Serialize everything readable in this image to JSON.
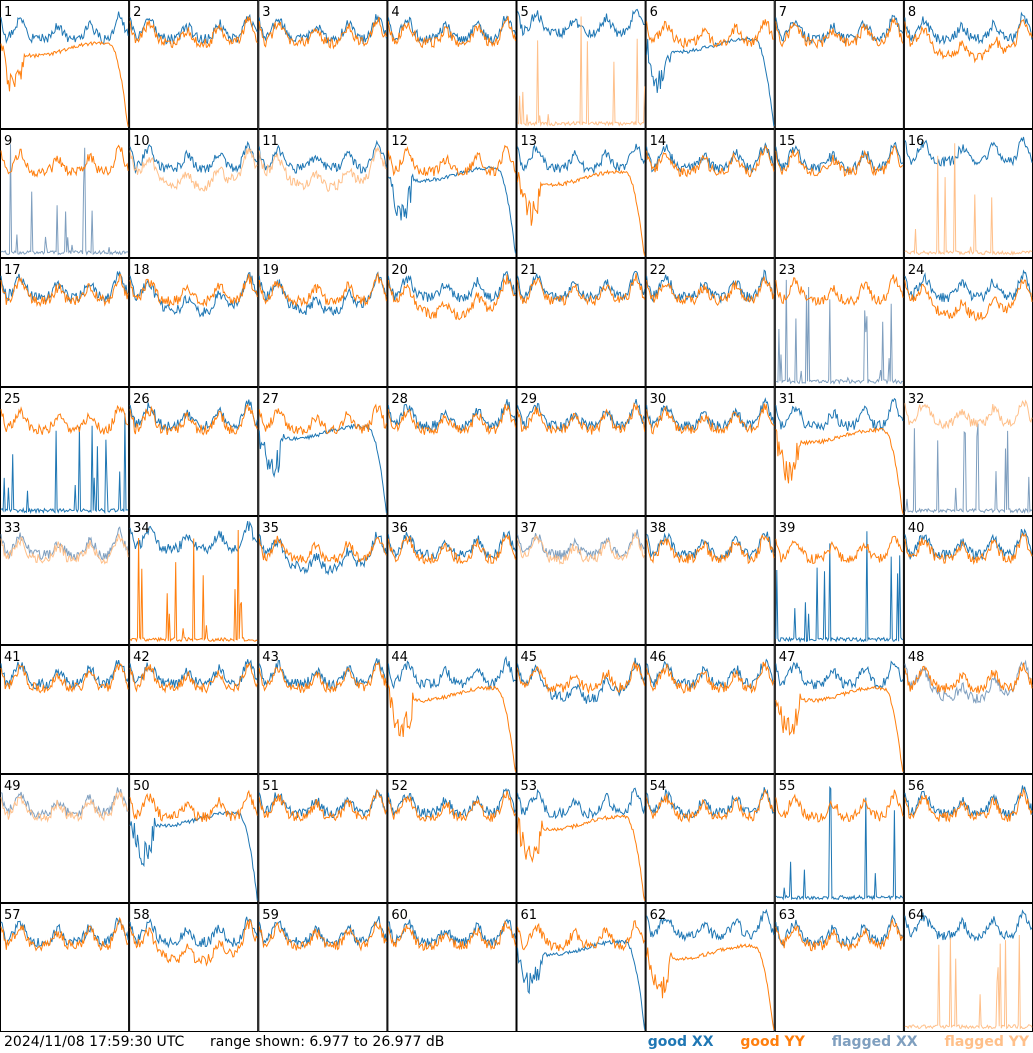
{
  "footer": {
    "timestamp": "2024/11/08 17:59:30 UTC",
    "range": "range shown: 6.977 to 26.977 dB"
  },
  "legend": [
    {
      "label": "good XX",
      "color": "#1f77b4"
    },
    {
      "label": "good YY",
      "color": "#ff7f0e"
    },
    {
      "label": "flagged XX",
      "color": "#7f9fbf"
    },
    {
      "label": "flagged YY",
      "color": "#ffc08a"
    }
  ],
  "chart_data": {
    "type": "line",
    "ylim": [
      6.977,
      26.977
    ],
    "ylabel_unit": "dB",
    "grid": {
      "rows": 8,
      "cols": 8
    },
    "colors": {
      "good_xx": "#1f77b4",
      "good_yy": "#ff7f0e",
      "flagged_xx": "#7f9fbf",
      "flagged_yy": "#ffc08a"
    },
    "panels": [
      {
        "id": "1",
        "xx": "normal",
        "yy": "rolloff",
        "xx_flag": false,
        "yy_flag": false
      },
      {
        "id": "2",
        "xx": "normal",
        "yy": "normal",
        "xx_flag": false,
        "yy_flag": false
      },
      {
        "id": "3",
        "xx": "normal",
        "yy": "normal",
        "xx_flag": false,
        "yy_flag": false
      },
      {
        "id": "4",
        "xx": "normal",
        "yy": "normal",
        "xx_flag": false,
        "yy_flag": false
      },
      {
        "id": "5",
        "xx": "high",
        "yy": "spikes",
        "xx_flag": false,
        "yy_flag": true
      },
      {
        "id": "6",
        "xx": "rolloff",
        "yy": "normal",
        "xx_flag": false,
        "yy_flag": false
      },
      {
        "id": "7",
        "xx": "normal",
        "yy": "normal",
        "xx_flag": false,
        "yy_flag": false
      },
      {
        "id": "8",
        "xx": "normal",
        "yy": "low",
        "xx_flag": false,
        "yy_flag": false
      },
      {
        "id": "9",
        "xx": "spikes",
        "yy": "normal",
        "xx_flag": true,
        "yy_flag": false
      },
      {
        "id": "10",
        "xx": "normal",
        "yy": "low",
        "xx_flag": false,
        "yy_flag": true
      },
      {
        "id": "11",
        "xx": "normal",
        "yy": "low",
        "xx_flag": false,
        "yy_flag": true
      },
      {
        "id": "12",
        "xx": "rolloff",
        "yy": "normal",
        "xx_flag": false,
        "yy_flag": false
      },
      {
        "id": "13",
        "xx": "normal",
        "yy": "rolloff",
        "xx_flag": false,
        "yy_flag": false
      },
      {
        "id": "14",
        "xx": "normal",
        "yy": "normal",
        "xx_flag": false,
        "yy_flag": false
      },
      {
        "id": "15",
        "xx": "normal",
        "yy": "normal",
        "xx_flag": false,
        "yy_flag": false
      },
      {
        "id": "16",
        "xx": "high",
        "yy": "spikes",
        "xx_flag": false,
        "yy_flag": true
      },
      {
        "id": "17",
        "xx": "normal",
        "yy": "normal",
        "xx_flag": false,
        "yy_flag": false
      },
      {
        "id": "18",
        "xx": "low",
        "yy": "normal",
        "xx_flag": false,
        "yy_flag": false
      },
      {
        "id": "19",
        "xx": "low",
        "yy": "normal",
        "xx_flag": false,
        "yy_flag": false
      },
      {
        "id": "20",
        "xx": "normal",
        "yy": "low",
        "xx_flag": false,
        "yy_flag": false
      },
      {
        "id": "21",
        "xx": "normal",
        "yy": "normal",
        "xx_flag": false,
        "yy_flag": false
      },
      {
        "id": "22",
        "xx": "normal",
        "yy": "normal",
        "xx_flag": false,
        "yy_flag": false
      },
      {
        "id": "23",
        "xx": "spikes",
        "yy": "normal",
        "xx_flag": true,
        "yy_flag": false
      },
      {
        "id": "24",
        "xx": "normal",
        "yy": "low",
        "xx_flag": false,
        "yy_flag": false
      },
      {
        "id": "25",
        "xx": "spikes",
        "yy": "normal",
        "xx_flag": false,
        "yy_flag": false
      },
      {
        "id": "26",
        "xx": "normal",
        "yy": "normal",
        "xx_flag": false,
        "yy_flag": false
      },
      {
        "id": "27",
        "xx": "rolloff",
        "yy": "normal",
        "xx_flag": false,
        "yy_flag": false
      },
      {
        "id": "28",
        "xx": "normal",
        "yy": "normal",
        "xx_flag": false,
        "yy_flag": false
      },
      {
        "id": "29",
        "xx": "normal",
        "yy": "normal",
        "xx_flag": false,
        "yy_flag": false
      },
      {
        "id": "30",
        "xx": "normal",
        "yy": "normal",
        "xx_flag": false,
        "yy_flag": false
      },
      {
        "id": "31",
        "xx": "normal",
        "yy": "rolloff",
        "xx_flag": false,
        "yy_flag": false
      },
      {
        "id": "32",
        "xx": "spikes",
        "yy": "high",
        "xx_flag": true,
        "yy_flag": true
      },
      {
        "id": "33",
        "xx": "normal",
        "yy": "normal",
        "xx_flag": true,
        "yy_flag": true
      },
      {
        "id": "34",
        "xx": "high",
        "yy": "spikes",
        "xx_flag": false,
        "yy_flag": false
      },
      {
        "id": "35",
        "xx": "low",
        "yy": "normal",
        "xx_flag": false,
        "yy_flag": false
      },
      {
        "id": "36",
        "xx": "normal",
        "yy": "normal",
        "xx_flag": false,
        "yy_flag": false
      },
      {
        "id": "37",
        "xx": "normal",
        "yy": "normal",
        "xx_flag": true,
        "yy_flag": true
      },
      {
        "id": "38",
        "xx": "normal",
        "yy": "normal",
        "xx_flag": false,
        "yy_flag": false
      },
      {
        "id": "39",
        "xx": "spikes",
        "yy": "normal",
        "xx_flag": false,
        "yy_flag": false
      },
      {
        "id": "40",
        "xx": "normal",
        "yy": "normal",
        "xx_flag": false,
        "yy_flag": false
      },
      {
        "id": "41",
        "xx": "normal",
        "yy": "normal",
        "xx_flag": false,
        "yy_flag": false
      },
      {
        "id": "42",
        "xx": "normal",
        "yy": "normal",
        "xx_flag": false,
        "yy_flag": false
      },
      {
        "id": "43",
        "xx": "normal",
        "yy": "normal",
        "xx_flag": false,
        "yy_flag": false
      },
      {
        "id": "44",
        "xx": "normal",
        "yy": "rolloff",
        "xx_flag": false,
        "yy_flag": false
      },
      {
        "id": "45",
        "xx": "low",
        "yy": "normal",
        "xx_flag": false,
        "yy_flag": false
      },
      {
        "id": "46",
        "xx": "normal",
        "yy": "normal",
        "xx_flag": false,
        "yy_flag": false
      },
      {
        "id": "47",
        "xx": "normal",
        "yy": "rolloff",
        "xx_flag": false,
        "yy_flag": false
      },
      {
        "id": "48",
        "xx": "low",
        "yy": "normal",
        "xx_flag": true,
        "yy_flag": false
      },
      {
        "id": "49",
        "xx": "normal",
        "yy": "normal",
        "xx_flag": true,
        "yy_flag": true
      },
      {
        "id": "50",
        "xx": "rolloff",
        "yy": "normal",
        "xx_flag": false,
        "yy_flag": false
      },
      {
        "id": "51",
        "xx": "normal",
        "yy": "normal",
        "xx_flag": false,
        "yy_flag": false
      },
      {
        "id": "52",
        "xx": "normal",
        "yy": "normal",
        "xx_flag": false,
        "yy_flag": false
      },
      {
        "id": "53",
        "xx": "normal",
        "yy": "rolloff",
        "xx_flag": false,
        "yy_flag": false
      },
      {
        "id": "54",
        "xx": "normal",
        "yy": "normal",
        "xx_flag": false,
        "yy_flag": false
      },
      {
        "id": "55",
        "xx": "spikes",
        "yy": "normal",
        "xx_flag": false,
        "yy_flag": false
      },
      {
        "id": "56",
        "xx": "normal",
        "yy": "normal",
        "xx_flag": false,
        "yy_flag": false
      },
      {
        "id": "57",
        "xx": "normal",
        "yy": "normal",
        "xx_flag": false,
        "yy_flag": false
      },
      {
        "id": "58",
        "xx": "normal",
        "yy": "low",
        "xx_flag": false,
        "yy_flag": false
      },
      {
        "id": "59",
        "xx": "normal",
        "yy": "normal",
        "xx_flag": false,
        "yy_flag": false
      },
      {
        "id": "60",
        "xx": "normal",
        "yy": "normal",
        "xx_flag": false,
        "yy_flag": false
      },
      {
        "id": "61",
        "xx": "rolloff",
        "yy": "normal",
        "xx_flag": false,
        "yy_flag": false
      },
      {
        "id": "62",
        "xx": "high",
        "yy": "rolloff",
        "xx_flag": false,
        "yy_flag": false
      },
      {
        "id": "63",
        "xx": "normal",
        "yy": "normal",
        "xx_flag": false,
        "yy_flag": false
      },
      {
        "id": "64",
        "xx": "high",
        "yy": "spikes",
        "xx_flag": false,
        "yy_flag": true
      }
    ]
  }
}
